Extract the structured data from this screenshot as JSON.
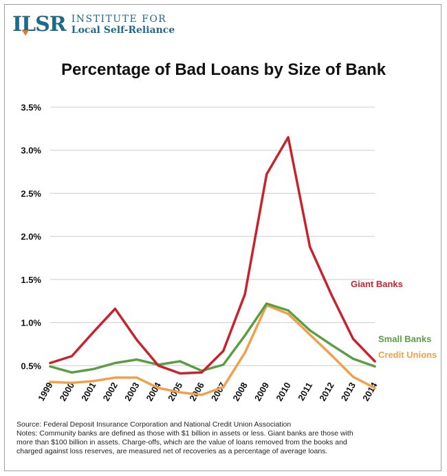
{
  "logo": {
    "mark": "ILSR",
    "line1": "INSTITUTE FOR",
    "line2": "Local Self-Reliance"
  },
  "colors": {
    "giant": "#c8232c",
    "small": "#5a9e44",
    "credit": "#f0a04b",
    "brand": "#1f6a8a",
    "grid": "#cccccc"
  },
  "chart_data": {
    "type": "line",
    "title": "Percentage of Bad Loans by Size of Bank",
    "xlabel": "",
    "ylabel": "",
    "categories": [
      "1999",
      "2000",
      "2001",
      "2002",
      "2003",
      "2004",
      "2005",
      "2006",
      "2007",
      "2008",
      "2009",
      "2010",
      "2011",
      "2012",
      "2013",
      "2014"
    ],
    "ylim": [
      0,
      3.5
    ],
    "yticks": [
      0.5,
      1.0,
      1.5,
      2.0,
      2.5,
      3.0,
      3.5
    ],
    "ytick_labels": [
      "0.5%",
      "1.0%",
      "1.5%",
      "2.0%",
      "2.5%",
      "3.0%",
      "3.5%"
    ],
    "grid": true,
    "series": [
      {
        "name": "Giant Banks",
        "color_key": "giant",
        "values": [
          0.53,
          0.61,
          0.89,
          1.16,
          0.8,
          0.5,
          0.41,
          0.42,
          0.67,
          1.33,
          2.72,
          3.15,
          1.88,
          1.32,
          0.81,
          0.55
        ]
      },
      {
        "name": "Small Banks",
        "color_key": "small",
        "values": [
          0.49,
          0.42,
          0.46,
          0.53,
          0.57,
          0.51,
          0.55,
          0.44,
          0.51,
          0.85,
          1.22,
          1.14,
          0.91,
          0.74,
          0.58,
          0.49
        ]
      },
      {
        "name": "Credit Unions",
        "color_key": "credit",
        "values": [
          0.31,
          0.3,
          0.32,
          0.36,
          0.36,
          0.24,
          0.19,
          0.16,
          0.25,
          0.65,
          1.2,
          1.1,
          0.86,
          0.62,
          0.37,
          0.24
        ]
      }
    ],
    "annotations": [
      "Giant Banks",
      "Small Banks",
      "Credit Unions"
    ]
  },
  "notes": {
    "source": "Source: Federal Deposit Insurance Corporation and National Credit Union Association",
    "line1": "Notes:  Community banks are defined as those with $1 billion in assets or less. Giant banks are those with",
    "line2": "more than $100 billion in assets.  Charge-offs, which are the value of loans removed from the books and",
    "line3": "charged against loss reserves, are measured net of recoveries as a percentage of average loans."
  }
}
